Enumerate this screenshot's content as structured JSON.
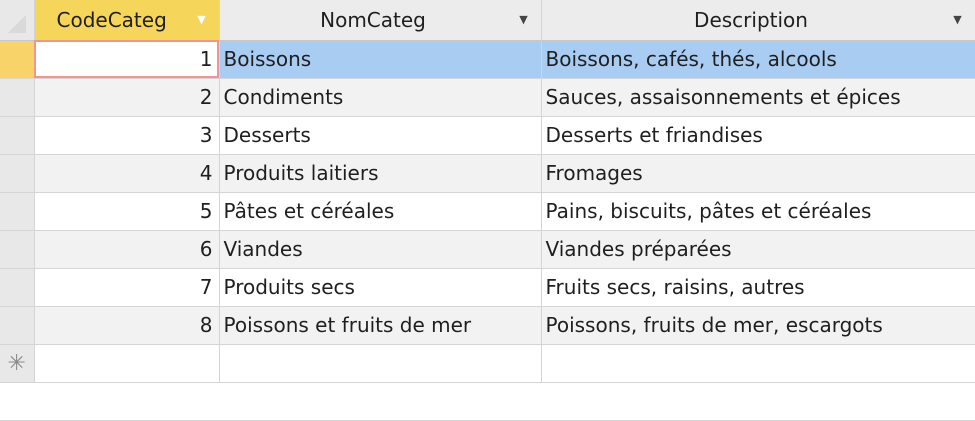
{
  "columns": [
    {
      "label": "CodeCateg",
      "sort_icon": "dropdown-arrow-icon"
    },
    {
      "label": "NomCateg",
      "sort_icon": "dropdown-arrow-icon"
    },
    {
      "label": "Description",
      "sort_icon": "dropdown-arrow-icon"
    }
  ],
  "rows": [
    {
      "code": "1",
      "nom": "Boissons",
      "description": "Boissons, cafés, thés, alcools"
    },
    {
      "code": "2",
      "nom": "Condiments",
      "description": "Sauces, assaisonnements et épices"
    },
    {
      "code": "3",
      "nom": "Desserts",
      "description": "Desserts et friandises"
    },
    {
      "code": "4",
      "nom": "Produits laitiers",
      "description": "Fromages"
    },
    {
      "code": "5",
      "nom": "Pâtes et céréales",
      "description": "Pains, biscuits, pâtes et céréales"
    },
    {
      "code": "6",
      "nom": "Viandes",
      "description": "Viandes préparées"
    },
    {
      "code": "7",
      "nom": "Produits secs",
      "description": "Fruits secs, raisins, autres"
    },
    {
      "code": "8",
      "nom": "Poissons et fruits de mer",
      "description": "Poissons, fruits de mer, escargots"
    }
  ],
  "new_record_marker": "✳",
  "colors": {
    "active_header": "#f6d65a",
    "selection": "#a9cdf2",
    "current_selector": "#f7d36a"
  }
}
